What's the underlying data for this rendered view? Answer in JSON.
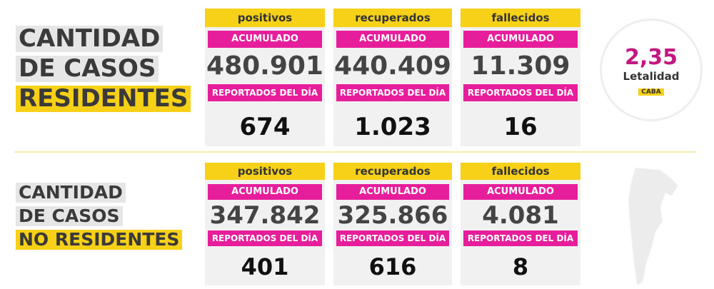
{
  "sections": [
    {
      "title": [
        "CANTIDAD",
        "DE CASOS",
        "RESIDENTES"
      ],
      "cards": [
        {
          "header": "positivos",
          "cumulative_label": "ACUMULADO",
          "cumulative": "480.901",
          "daily_label": "REPORTADOS DEL DÍA",
          "daily": "674"
        },
        {
          "header": "recuperados",
          "cumulative_label": "ACUMULADO",
          "cumulative": "440.409",
          "daily_label": "REPORTADOS DEL DÍA",
          "daily": "1.023"
        },
        {
          "header": "fallecidos",
          "cumulative_label": "ACUMULADO",
          "cumulative": "11.309",
          "daily_label": "REPORTADOS DEL DÍA",
          "daily": "16"
        }
      ]
    },
    {
      "title": [
        "CANTIDAD",
        "DE CASOS",
        "NO RESIDENTES"
      ],
      "cards": [
        {
          "header": "positivos",
          "cumulative_label": "ACUMULADO",
          "cumulative": "347.842",
          "daily_label": "REPORTADOS DEL DÍA",
          "daily": "401"
        },
        {
          "header": "recuperados",
          "cumulative_label": "ACUMULADO",
          "cumulative": "325.866",
          "daily_label": "REPORTADOS DEL DÍA",
          "daily": "616"
        },
        {
          "header": "fallecidos",
          "cumulative_label": "ACUMULADO",
          "cumulative": "4.081",
          "daily_label": "REPORTADOS DEL DÍA",
          "daily": "8"
        }
      ]
    }
  ],
  "lethality": {
    "value": "2,35",
    "label": "Letalidad",
    "region": "CABA"
  }
}
